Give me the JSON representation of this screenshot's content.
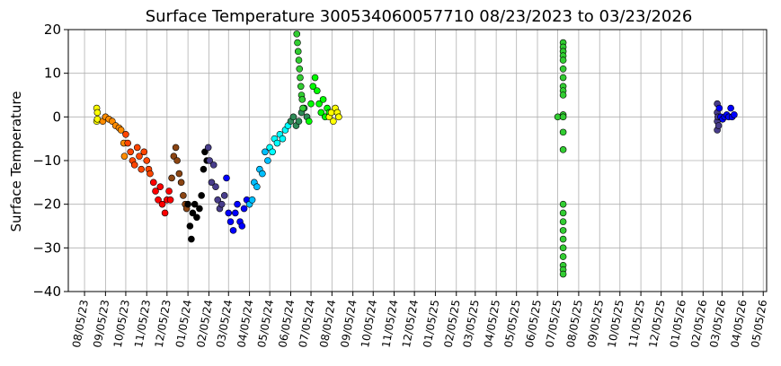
{
  "chart_data": {
    "type": "scatter",
    "title": "Surface Temperature 300534060057710  08/23/2023 to 03/23/2026",
    "xlabel": "",
    "ylabel": "Surface Temperature",
    "ylim": [
      -40,
      20
    ],
    "yticks": [
      "20",
      "10",
      "0",
      "−10",
      "−20",
      "−30",
      "−40"
    ],
    "yticks_values": [
      20,
      10,
      0,
      -10,
      -20,
      -30,
      -40
    ],
    "xlim": [
      "2023-07-12",
      "2026-05-10"
    ],
    "xticks": [
      "08/05/23",
      "09/05/23",
      "10/05/23",
      "11/05/23",
      "12/05/23",
      "01/05/24",
      "02/05/24",
      "03/05/24",
      "04/05/24",
      "05/05/24",
      "06/05/24",
      "07/05/24",
      "08/05/24",
      "09/05/24",
      "10/05/24",
      "11/05/24",
      "12/05/24",
      "01/05/25",
      "02/05/25",
      "03/05/25",
      "04/05/25",
      "05/05/25",
      "06/05/25",
      "07/05/25",
      "08/05/25",
      "09/05/25",
      "10/05/25",
      "11/05/25",
      "12/05/25",
      "01/05/26",
      "02/05/26",
      "03/05/26",
      "04/05/26",
      "05/05/26"
    ],
    "grid": true,
    "legend": "none",
    "series": [
      {
        "color": "#ffff00",
        "points": [
          [
            "2023-08-23",
            2
          ],
          [
            "2023-08-23",
            -1
          ],
          [
            "2023-08-24",
            1
          ],
          [
            "2023-08-24",
            -0.5
          ]
        ]
      },
      {
        "color": "#ff8c00",
        "points": [
          [
            "2023-09-01",
            -1
          ],
          [
            "2023-09-05",
            0
          ],
          [
            "2023-09-10",
            -0.5
          ],
          [
            "2023-09-15",
            -1
          ],
          [
            "2023-09-20",
            -2
          ],
          [
            "2023-09-25",
            -2.5
          ],
          [
            "2023-09-28",
            -3
          ],
          [
            "2023-10-02",
            -6
          ],
          [
            "2023-10-03",
            -9
          ]
        ]
      },
      {
        "color": "#ff4500",
        "points": [
          [
            "2023-10-05",
            -4
          ],
          [
            "2023-10-08",
            -6
          ],
          [
            "2023-10-12",
            -8
          ],
          [
            "2023-10-15",
            -10
          ],
          [
            "2023-10-18",
            -11
          ],
          [
            "2023-10-22",
            -7
          ],
          [
            "2023-10-25",
            -9
          ],
          [
            "2023-10-28",
            -12
          ],
          [
            "2023-11-01",
            -8
          ],
          [
            "2023-11-05",
            -10
          ],
          [
            "2023-11-08",
            -12
          ],
          [
            "2023-11-10",
            -13
          ]
        ]
      },
      {
        "color": "#ff0000",
        "points": [
          [
            "2023-11-15",
            -15
          ],
          [
            "2023-11-18",
            -17
          ],
          [
            "2023-11-22",
            -19
          ],
          [
            "2023-11-25",
            -16
          ],
          [
            "2023-11-28",
            -20
          ],
          [
            "2023-12-02",
            -22
          ],
          [
            "2023-12-05",
            -19
          ],
          [
            "2023-12-08",
            -17
          ],
          [
            "2023-12-10",
            -19
          ]
        ]
      },
      {
        "color": "#8b4513",
        "points": [
          [
            "2023-12-12",
            -14
          ],
          [
            "2023-12-15",
            -9
          ],
          [
            "2023-12-18",
            -7
          ],
          [
            "2023-12-20",
            -10
          ],
          [
            "2023-12-23",
            -13
          ],
          [
            "2023-12-26",
            -15
          ],
          [
            "2023-12-29",
            -18
          ],
          [
            "2024-01-01",
            -20
          ],
          [
            "2024-01-03",
            -21
          ]
        ]
      },
      {
        "color": "#000000",
        "points": [
          [
            "2024-01-05",
            -20
          ],
          [
            "2024-01-08",
            -25
          ],
          [
            "2024-01-10",
            -28
          ],
          [
            "2024-01-12",
            -22
          ],
          [
            "2024-01-15",
            -20
          ],
          [
            "2024-01-18",
            -23
          ],
          [
            "2024-01-22",
            -21
          ],
          [
            "2024-01-25",
            -18
          ],
          [
            "2024-01-28",
            -12
          ],
          [
            "2024-01-30",
            -8
          ],
          [
            "2024-02-02",
            -10
          ]
        ]
      },
      {
        "color": "#483d8b",
        "points": [
          [
            "2024-02-04",
            -7
          ],
          [
            "2024-02-06",
            -10
          ],
          [
            "2024-02-09",
            -15
          ],
          [
            "2024-02-12",
            -11
          ],
          [
            "2024-02-15",
            -16
          ],
          [
            "2024-02-18",
            -19
          ],
          [
            "2024-02-21",
            -21
          ],
          [
            "2024-02-24",
            -20
          ],
          [
            "2024-02-28",
            -18
          ]
        ]
      },
      {
        "color": "#0000ff",
        "points": [
          [
            "2024-03-02",
            -14
          ],
          [
            "2024-03-05",
            -22
          ],
          [
            "2024-03-08",
            -24
          ],
          [
            "2024-03-12",
            -26
          ],
          [
            "2024-03-15",
            -22
          ],
          [
            "2024-03-18",
            -20
          ],
          [
            "2024-03-22",
            -24
          ],
          [
            "2024-03-25",
            -25
          ],
          [
            "2024-03-28",
            -21
          ],
          [
            "2024-04-01",
            -19
          ]
        ]
      },
      {
        "color": "#00bfff",
        "points": [
          [
            "2024-04-05",
            -20
          ],
          [
            "2024-04-09",
            -19
          ],
          [
            "2024-04-12",
            -15
          ],
          [
            "2024-04-16",
            -16
          ],
          [
            "2024-04-20",
            -12
          ],
          [
            "2024-04-24",
            -13
          ],
          [
            "2024-04-28",
            -8
          ],
          [
            "2024-05-02",
            -10
          ]
        ]
      },
      {
        "color": "#00ffff",
        "points": [
          [
            "2024-05-05",
            -7
          ],
          [
            "2024-05-09",
            -8
          ],
          [
            "2024-05-12",
            -5
          ],
          [
            "2024-05-16",
            -6
          ],
          [
            "2024-05-20",
            -4
          ],
          [
            "2024-05-24",
            -5
          ],
          [
            "2024-05-28",
            -3
          ],
          [
            "2024-06-01",
            -2
          ]
        ]
      },
      {
        "color": "#2e8b57",
        "points": [
          [
            "2024-06-05",
            -1
          ],
          [
            "2024-06-09",
            0
          ],
          [
            "2024-06-13",
            -2
          ],
          [
            "2024-06-17",
            -1
          ],
          [
            "2024-06-21",
            1
          ],
          [
            "2024-06-25",
            2
          ],
          [
            "2024-06-29",
            0
          ]
        ]
      },
      {
        "color": "#32cd32",
        "points": [
          [
            "2024-06-14",
            19
          ],
          [
            "2024-06-15",
            17
          ],
          [
            "2024-06-16",
            15
          ],
          [
            "2024-06-17",
            13
          ],
          [
            "2024-06-18",
            11
          ],
          [
            "2024-06-19",
            9
          ],
          [
            "2024-06-20",
            7
          ],
          [
            "2024-06-21",
            5
          ],
          [
            "2024-06-22",
            4
          ],
          [
            "2024-06-23",
            2
          ]
        ]
      },
      {
        "color": "#00ff00",
        "points": [
          [
            "2024-07-02",
            -1
          ],
          [
            "2024-07-05",
            3
          ],
          [
            "2024-07-08",
            7
          ],
          [
            "2024-07-11",
            9
          ],
          [
            "2024-07-14",
            6
          ],
          [
            "2024-07-17",
            3
          ],
          [
            "2024-07-20",
            1
          ],
          [
            "2024-07-23",
            4
          ],
          [
            "2024-07-26",
            0
          ],
          [
            "2024-07-29",
            2
          ],
          [
            "2024-08-01",
            1
          ]
        ]
      },
      {
        "color": "#ffff00",
        "points": [
          [
            "2024-08-01",
            0
          ],
          [
            "2024-08-04",
            1
          ],
          [
            "2024-08-07",
            -1
          ],
          [
            "2024-08-10",
            2
          ],
          [
            "2024-08-13",
            1
          ],
          [
            "2024-08-15",
            0
          ]
        ]
      },
      {
        "color": "#32cd32",
        "points": [
          [
            "2025-07-05",
            0
          ],
          [
            "2025-07-13",
            17
          ],
          [
            "2025-07-13",
            16
          ],
          [
            "2025-07-13",
            15
          ],
          [
            "2025-07-13",
            14
          ],
          [
            "2025-07-13",
            13
          ],
          [
            "2025-07-13",
            11
          ],
          [
            "2025-07-13",
            9
          ],
          [
            "2025-07-13",
            7
          ],
          [
            "2025-07-13",
            6
          ],
          [
            "2025-07-13",
            5
          ],
          [
            "2025-07-13",
            0.5
          ],
          [
            "2025-07-13",
            0
          ],
          [
            "2025-07-13",
            -3.5
          ],
          [
            "2025-07-13",
            -7.5
          ],
          [
            "2025-07-13",
            -20
          ],
          [
            "2025-07-13",
            -22
          ],
          [
            "2025-07-13",
            -24
          ],
          [
            "2025-07-13",
            -26
          ],
          [
            "2025-07-13",
            -28
          ],
          [
            "2025-07-13",
            -30
          ],
          [
            "2025-07-13",
            -32
          ],
          [
            "2025-07-13",
            -34
          ],
          [
            "2025-07-13",
            -35
          ],
          [
            "2025-07-13",
            -36
          ]
        ]
      },
      {
        "color": "#483d8b",
        "points": [
          [
            "2026-02-26",
            3
          ],
          [
            "2026-02-26",
            1
          ],
          [
            "2026-02-26",
            -1
          ],
          [
            "2026-02-26",
            -3
          ],
          [
            "2026-02-27",
            0
          ],
          [
            "2026-02-28",
            -2
          ]
        ]
      },
      {
        "color": "#0000ff",
        "points": [
          [
            "2026-03-01",
            2
          ],
          [
            "2026-03-03",
            0
          ],
          [
            "2026-03-06",
            -0.5
          ],
          [
            "2026-03-09",
            0
          ],
          [
            "2026-03-12",
            0.5
          ],
          [
            "2026-03-15",
            0
          ],
          [
            "2026-03-18",
            2
          ],
          [
            "2026-03-20",
            0
          ],
          [
            "2026-03-23",
            0.5
          ]
        ]
      }
    ]
  }
}
